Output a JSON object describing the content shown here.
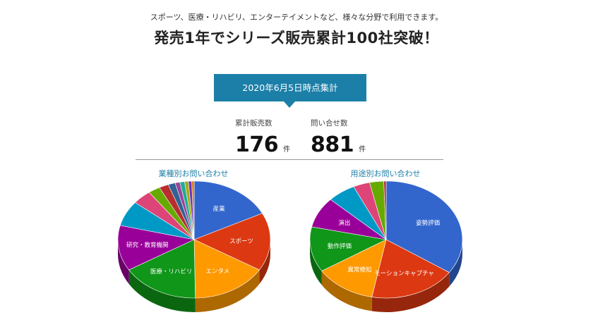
{
  "header": {
    "subtitle": "スポーツ、医療・リハビリ、エンターテイメントなど、様々な分野で利用できます。",
    "headline": "発売1年でシリーズ販売累計100社突破！"
  },
  "banner": {
    "text": "2020年6月5日時点集計"
  },
  "stats": {
    "sales_label": "累計販売数",
    "sales_value": "176",
    "sales_unit": "件",
    "inquiries_label": "問い合せ数",
    "inquiries_value": "881",
    "inquiries_unit": "件"
  },
  "colors": {
    "banner": "#1b7fa8",
    "accent_text": "#1b7fa8"
  },
  "chart_data": [
    {
      "type": "pie",
      "title": "業種別お問い合わせ",
      "slices": [
        {
          "label": "産業",
          "value": 17.5,
          "color": "#3366cc"
        },
        {
          "label": "スポーツ",
          "value": 16.0,
          "color": "#dc3912"
        },
        {
          "label": "エンタメ",
          "value": 16.0,
          "color": "#ff9900"
        },
        {
          "label": "医療・リハビリ",
          "value": 16.5,
          "color": "#109618"
        },
        {
          "label": "研究・教育機関",
          "value": 12.5,
          "color": "#990099"
        },
        {
          "label": "",
          "value": 7.0,
          "color": "#0099c6"
        },
        {
          "label": "",
          "value": 4.0,
          "color": "#dd4477"
        },
        {
          "label": "",
          "value": 2.5,
          "color": "#66aa00"
        },
        {
          "label": "",
          "value": 2.0,
          "color": "#b82e2e"
        },
        {
          "label": "",
          "value": 1.5,
          "color": "#316395"
        },
        {
          "label": "",
          "value": 1.0,
          "color": "#994499"
        },
        {
          "label": "",
          "value": 1.0,
          "color": "#22aa99"
        },
        {
          "label": "",
          "value": 0.8,
          "color": "#aaaa11"
        },
        {
          "label": "",
          "value": 0.7,
          "color": "#6633cc"
        },
        {
          "label": "",
          "value": 0.5,
          "color": "#e67300"
        }
      ]
    },
    {
      "type": "pie",
      "title": "用途別お問い合わせ",
      "slices": [
        {
          "label": "姿勢評価",
          "value": 34.5,
          "color": "#3366cc"
        },
        {
          "label": "モーションキャプチャ",
          "value": 18.5,
          "color": "#dc3912"
        },
        {
          "label": "異常検知",
          "value": 13.0,
          "color": "#ff9900"
        },
        {
          "label": "動作評価",
          "value": 12.5,
          "color": "#109618"
        },
        {
          "label": "演出",
          "value": 8.5,
          "color": "#990099"
        },
        {
          "label": "",
          "value": 6.0,
          "color": "#0099c6"
        },
        {
          "label": "",
          "value": 3.5,
          "color": "#dd4477"
        },
        {
          "label": "",
          "value": 3.0,
          "color": "#66aa00"
        },
        {
          "label": "",
          "value": 0.5,
          "color": "#b82e2e"
        }
      ]
    }
  ]
}
